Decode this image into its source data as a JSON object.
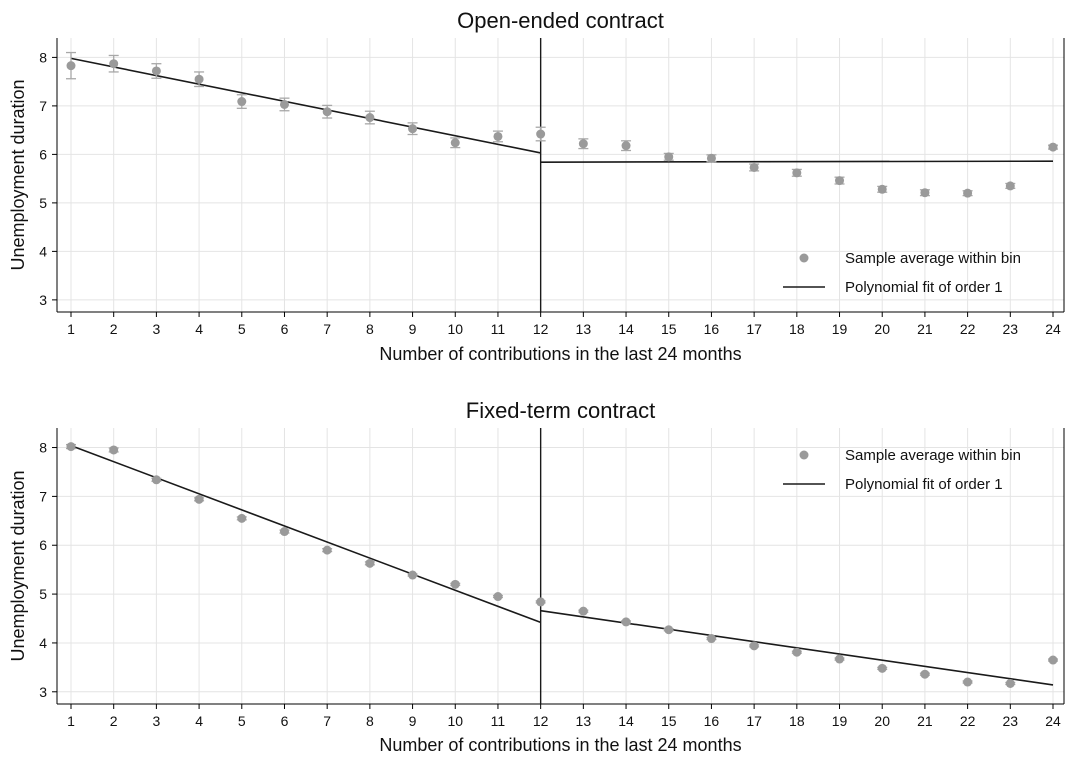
{
  "chart_data": [
    {
      "type": "scatter",
      "title": "Open-ended contract",
      "xlabel": "Number of contributions in the last 24 months",
      "ylabel": "Unemployment duration",
      "xlim": [
        1,
        24
      ],
      "ylim": [
        2.75,
        8.4
      ],
      "xticks": [
        1,
        2,
        3,
        4,
        5,
        6,
        7,
        8,
        9,
        10,
        11,
        12,
        13,
        14,
        15,
        16,
        17,
        18,
        19,
        20,
        21,
        22,
        23,
        24
      ],
      "yticks": [
        3,
        4,
        5,
        6,
        7,
        8
      ],
      "grid": true,
      "cutoff": 12,
      "legend_position": "bottom-right",
      "series": [
        {
          "name": "Sample average within bin",
          "x": [
            1,
            2,
            3,
            4,
            5,
            6,
            7,
            8,
            9,
            10,
            11,
            12,
            13,
            14,
            15,
            16,
            17,
            18,
            19,
            20,
            21,
            22,
            23,
            24
          ],
          "y": [
            7.83,
            7.87,
            7.72,
            7.55,
            7.09,
            7.03,
            6.88,
            6.76,
            6.53,
            6.24,
            6.37,
            6.42,
            6.22,
            6.18,
            5.95,
            5.92,
            5.73,
            5.62,
            5.46,
            5.28,
            5.21,
            5.2,
            5.35,
            6.15
          ],
          "err": [
            0.27,
            0.17,
            0.15,
            0.15,
            0.14,
            0.13,
            0.13,
            0.13,
            0.12,
            0.1,
            0.11,
            0.14,
            0.1,
            0.1,
            0.07,
            0.07,
            0.07,
            0.07,
            0.07,
            0.06,
            0.06,
            0.05,
            0.05,
            0.04
          ]
        },
        {
          "name": "Polynomial fit of order 1",
          "segments": [
            {
              "x": [
                1,
                12
              ],
              "y": [
                7.98,
                6.03
              ]
            },
            {
              "x": [
                12,
                24
              ],
              "y": [
                5.84,
                5.86
              ]
            }
          ]
        }
      ]
    },
    {
      "type": "scatter",
      "title": "Fixed-term contract",
      "xlabel": "Number of contributions in the last 24 months",
      "ylabel": "Unemployment duration",
      "xlim": [
        1,
        24
      ],
      "ylim": [
        2.75,
        8.4
      ],
      "xticks": [
        1,
        2,
        3,
        4,
        5,
        6,
        7,
        8,
        9,
        10,
        11,
        12,
        13,
        14,
        15,
        16,
        17,
        18,
        19,
        20,
        21,
        22,
        23,
        24
      ],
      "yticks": [
        3,
        4,
        5,
        6,
        7,
        8
      ],
      "grid": true,
      "cutoff": 12,
      "legend_position": "top-right",
      "series": [
        {
          "name": "Sample average within bin",
          "x": [
            1,
            2,
            3,
            4,
            5,
            6,
            7,
            8,
            9,
            10,
            11,
            12,
            13,
            14,
            15,
            16,
            17,
            18,
            19,
            20,
            21,
            22,
            23,
            24
          ],
          "y": [
            8.02,
            7.95,
            7.34,
            6.94,
            6.55,
            6.28,
            5.9,
            5.63,
            5.39,
            5.2,
            4.95,
            4.84,
            4.65,
            4.43,
            4.27,
            4.09,
            3.94,
            3.81,
            3.67,
            3.48,
            3.36,
            3.2,
            3.17,
            3.65
          ],
          "err": [
            0.04,
            0.04,
            0.03,
            0.03,
            0.03,
            0.03,
            0.03,
            0.03,
            0.02,
            0.02,
            0.02,
            0.02,
            0.02,
            0.02,
            0.02,
            0.02,
            0.02,
            0.02,
            0.02,
            0.02,
            0.02,
            0.02,
            0.02,
            0.02
          ]
        },
        {
          "name": "Polynomial fit of order 1",
          "segments": [
            {
              "x": [
                1,
                12
              ],
              "y": [
                8.04,
                4.42
              ]
            },
            {
              "x": [
                12,
                24
              ],
              "y": [
                4.66,
                3.14
              ]
            }
          ]
        }
      ]
    }
  ]
}
